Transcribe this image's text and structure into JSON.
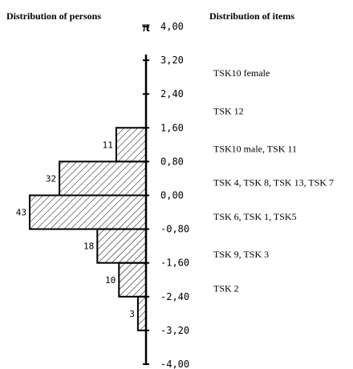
{
  "chart_data": {
    "type": "bar",
    "orientation": "horizontal",
    "left_title": "Distribution of persons",
    "right_title": "Distribution of items",
    "axis": {
      "min": -4.0,
      "max": 4.0,
      "ticks": [
        "4,00",
        "3,20",
        "2,40",
        "1,60",
        "0,80",
        "0,00",
        "-0,80",
        "-1,60",
        "-2,40",
        "-3,20",
        "-4,00"
      ],
      "top_marker": "π"
    },
    "bins": [
      {
        "from": 0.8,
        "to": 1.6,
        "count": 11,
        "label": "11"
      },
      {
        "from": 0.0,
        "to": 0.8,
        "count": 32,
        "label": "32"
      },
      {
        "from": -0.8,
        "to": 0.0,
        "count": 43,
        "label": "43"
      },
      {
        "from": -1.6,
        "to": -0.8,
        "count": 18,
        "label": "18"
      },
      {
        "from": -2.4,
        "to": -1.6,
        "count": 10,
        "label": "10"
      },
      {
        "from": -3.2,
        "to": -2.4,
        "count": 3,
        "label": "3"
      }
    ],
    "items": [
      {
        "value": 2.9,
        "label": "TSK10 female"
      },
      {
        "value": 2.0,
        "label": "TSK 12"
      },
      {
        "value": 1.1,
        "label": "TSK10 male, TSK 11"
      },
      {
        "value": 0.3,
        "label": "TSK 4, TSK 8, TSK 13, TSK 7"
      },
      {
        "value": -0.5,
        "label": "TSK 6, TSK 1, TSK5"
      },
      {
        "value": -1.4,
        "label": "TSK 9, TSK 3"
      },
      {
        "value": -2.2,
        "label": "TSK 2"
      }
    ],
    "hatch": "diagonal"
  }
}
